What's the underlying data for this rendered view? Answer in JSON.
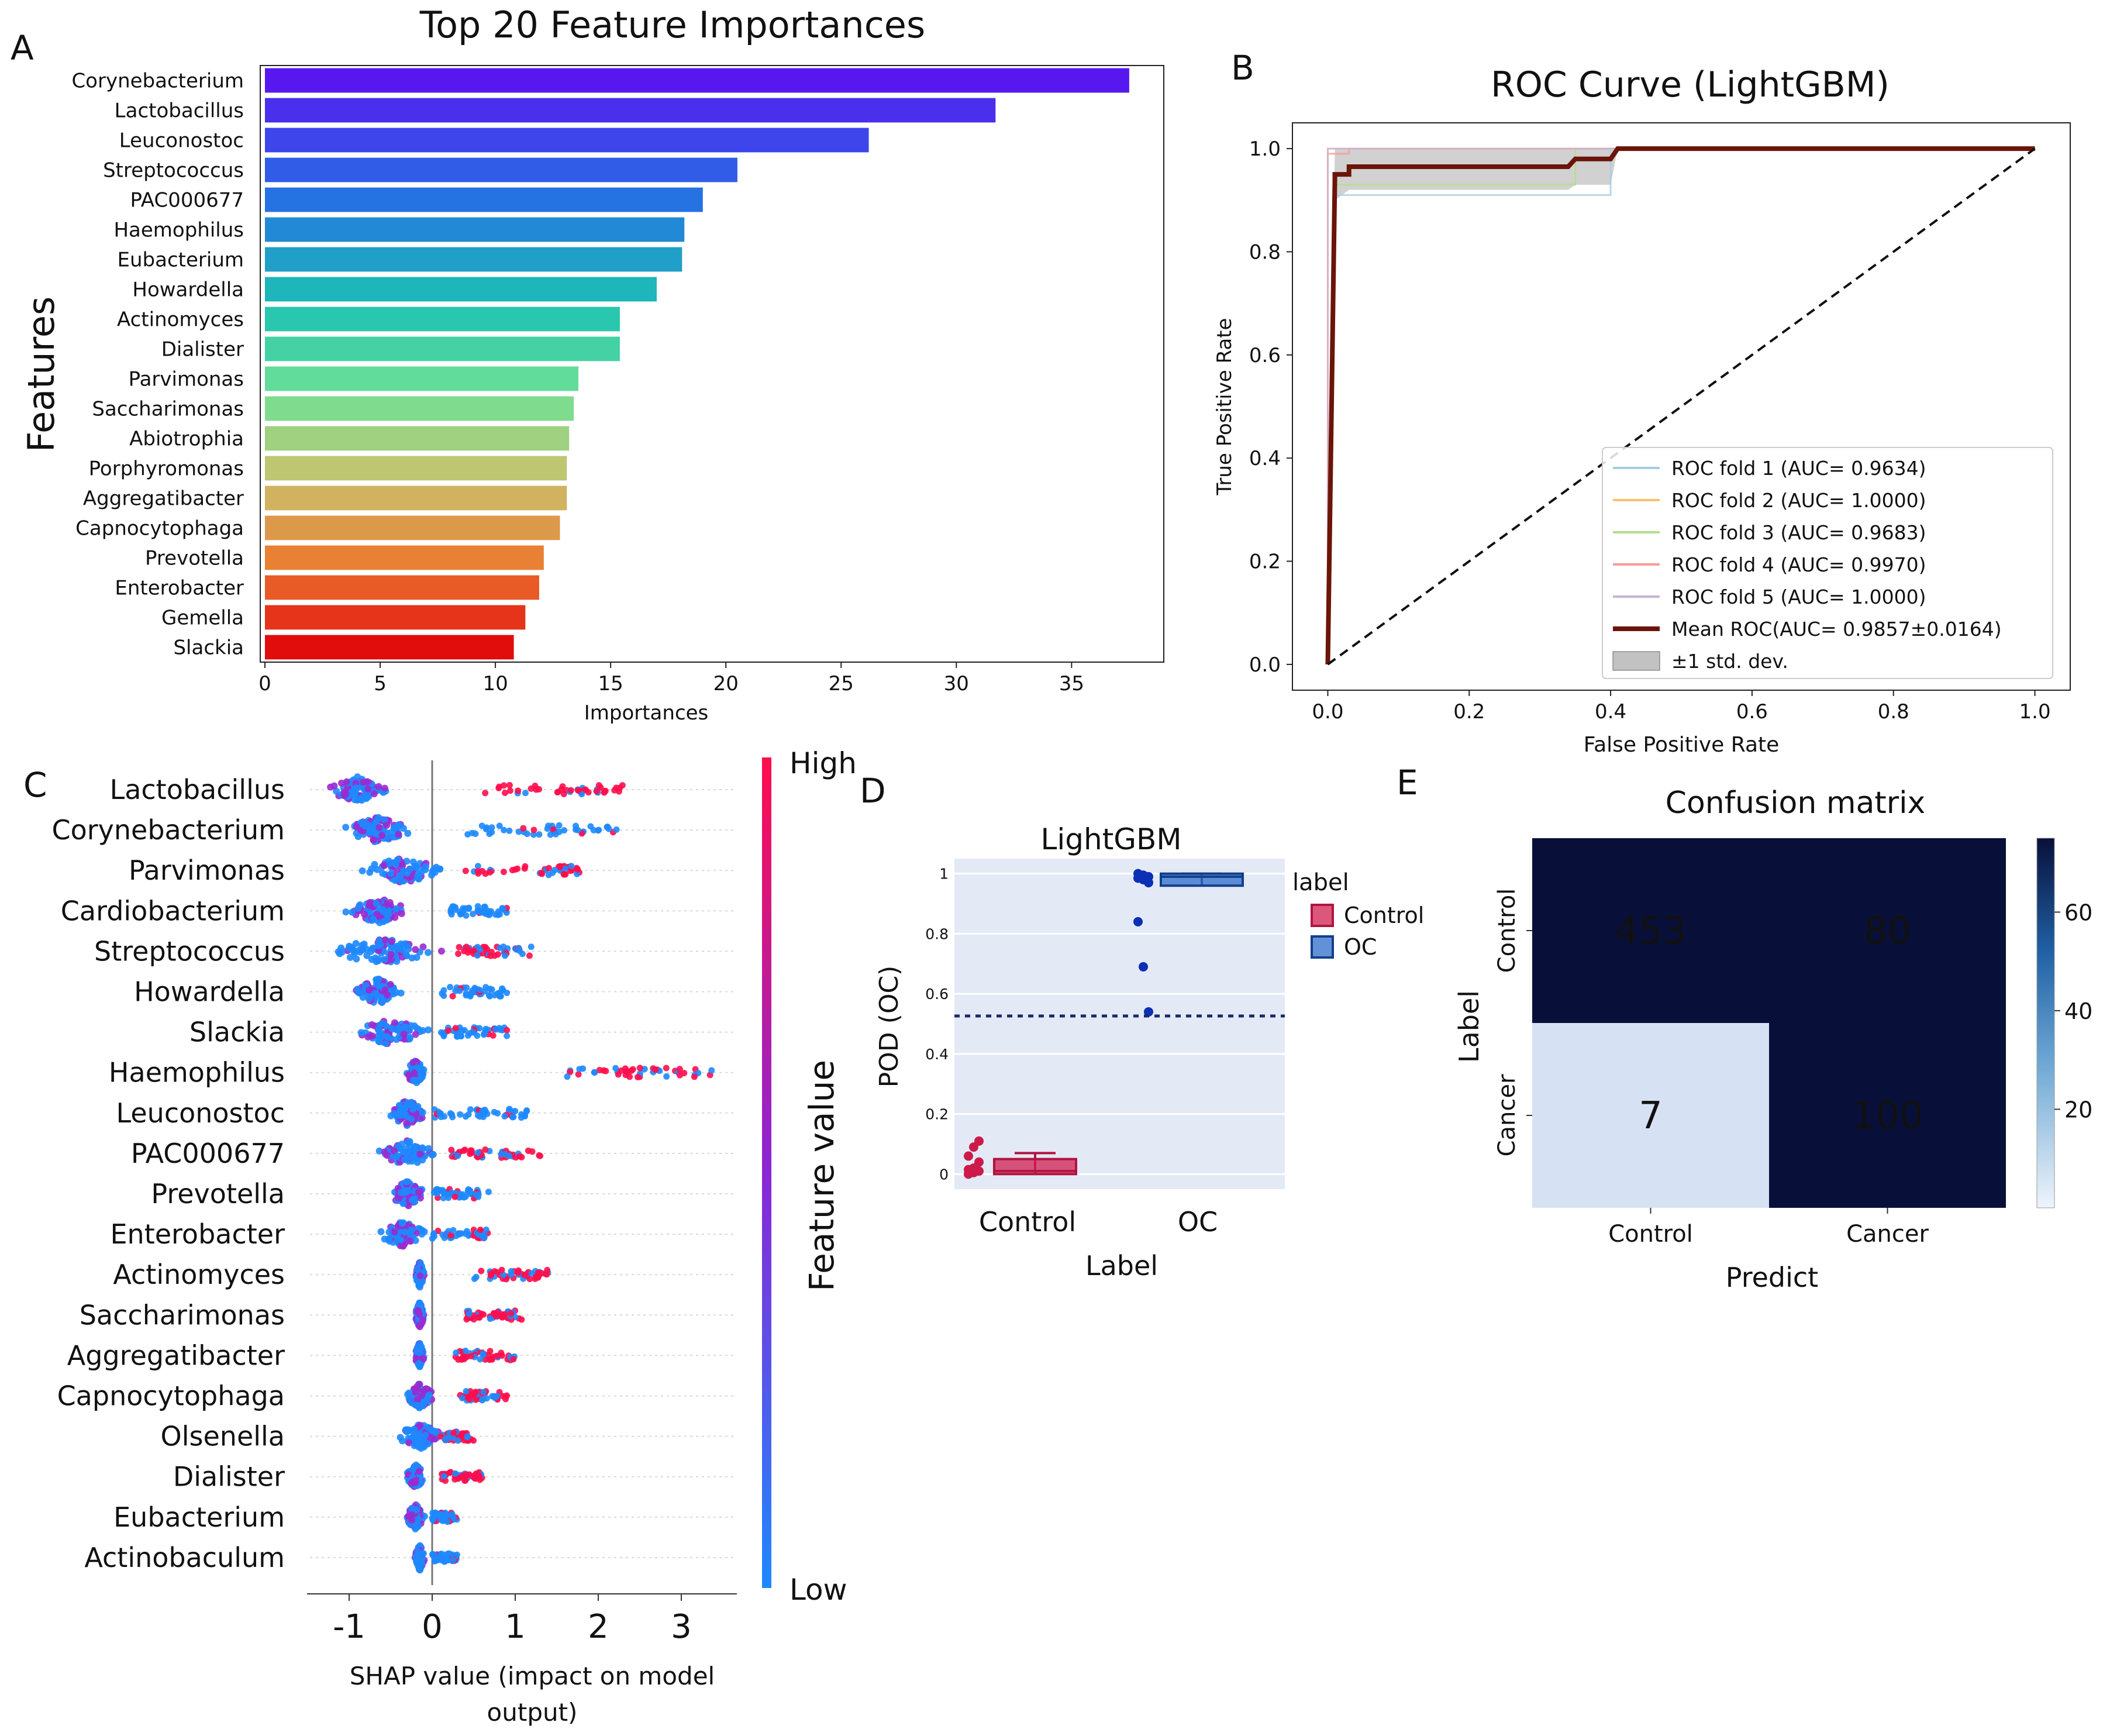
{
  "panel_labels": {
    "a": "A",
    "b": "B",
    "c": "C",
    "d": "D",
    "e": "E"
  },
  "colors": {
    "mean_roc": "#6b1408",
    "std_band": "#999999",
    "shap_high": "#ff0d4d",
    "shap_low": "#1e88ff",
    "cm_dark": "#08103a",
    "cm_light": "#e6eef8",
    "box_control": "#d11f52",
    "box_oc": "#2d6cc9",
    "panel_d_bg": "#e4e9f6"
  },
  "chart_data": [
    {
      "id": "importance",
      "type": "bar",
      "orientation": "horizontal",
      "title": "Top 20 Feature Importances",
      "xlabel": "Importances",
      "ylabel": "Features",
      "xlim": [
        0,
        39
      ],
      "xticks": [
        0,
        5,
        10,
        15,
        20,
        25,
        30,
        35
      ],
      "categories": [
        "Corynebacterium",
        "Lactobacillus",
        "Leuconostoc",
        "Streptococcus",
        "PAC000677",
        "Haemophilus",
        "Eubacterium",
        "Howardella",
        "Actinomyces",
        "Dialister",
        "Parvimonas",
        "Saccharimonas",
        "Abiotrophia",
        "Porphyromonas",
        "Aggregatibacter",
        "Capnocytophaga",
        "Prevotella",
        "Enterobacter",
        "Gemella",
        "Slackia"
      ],
      "values": [
        37.5,
        31.7,
        26.2,
        20.5,
        19.0,
        18.2,
        18.1,
        17.0,
        15.4,
        15.4,
        13.6,
        13.4,
        13.2,
        13.1,
        13.1,
        12.8,
        12.1,
        11.9,
        11.3,
        10.8
      ]
    },
    {
      "id": "roc",
      "type": "line",
      "title": "ROC Curve (LightGBM)",
      "xlabel": "False Positive Rate",
      "ylabel": "True Positive Rate",
      "xlim": [
        -0.05,
        1.05
      ],
      "ylim": [
        -0.05,
        1.05
      ],
      "ticks": [
        "0.0",
        "0.2",
        "0.4",
        "0.6",
        "0.8",
        "1.0"
      ],
      "series": [
        {
          "name": "ROC fold 1 (AUC= 0.9634)",
          "color": "#a6cee3",
          "x": [
            0,
            0.01,
            0.01,
            0.4,
            0.4,
            1
          ],
          "y": [
            0,
            0.9,
            0.91,
            0.91,
            1,
            1
          ]
        },
        {
          "name": "ROC fold 2 (AUC= 1.0000)",
          "color": "#fdbf6f",
          "x": [
            0,
            0,
            1
          ],
          "y": [
            0,
            1,
            1
          ]
        },
        {
          "name": "ROC fold 3 (AUC= 0.9683)",
          "color": "#b2df8a",
          "x": [
            0,
            0.01,
            0.01,
            0.35,
            0.35,
            1
          ],
          "y": [
            0,
            0.92,
            0.93,
            0.93,
            1,
            1
          ]
        },
        {
          "name": "ROC fold 4 (AUC= 0.9970)",
          "color": "#fb9a99",
          "x": [
            0,
            0,
            0.03,
            0.03,
            1
          ],
          "y": [
            0,
            0.99,
            0.99,
            1,
            1
          ]
        },
        {
          "name": "ROC fold 5 (AUC= 1.0000)",
          "color": "#cab2d6",
          "x": [
            0,
            0,
            1
          ],
          "y": [
            0,
            1,
            1
          ]
        }
      ],
      "mean": {
        "name": "Mean ROC(AUC= 0.9857±0.0164)",
        "x": [
          0,
          0.01,
          0.01,
          0.03,
          0.03,
          0.34,
          0.35,
          0.4,
          0.41,
          1
        ],
        "y": [
          0,
          0.94,
          0.95,
          0.95,
          0.965,
          0.965,
          0.98,
          0.98,
          1,
          1
        ]
      },
      "std_band": {
        "name": "±1 std. dev.",
        "x": [
          0,
          0.01,
          0.03,
          0.34,
          0.35,
          0.4,
          0.41,
          1
        ],
        "upper": [
          0.02,
          1,
          1,
          1,
          1,
          1,
          1,
          1
        ],
        "lower": [
          0,
          0.9,
          0.92,
          0.92,
          0.93,
          0.93,
          1,
          1
        ]
      },
      "diagonal": {
        "x": [
          0,
          1
        ],
        "y": [
          0,
          1
        ]
      }
    },
    {
      "id": "shap",
      "type": "scatter",
      "subtype": "beeswarm",
      "xlabel_line1": "SHAP value (impact on model",
      "xlabel_line2": "output)",
      "xlim": [
        -1.5,
        3.5
      ],
      "xticks": [
        "-1",
        "0",
        "1",
        "2",
        "3"
      ],
      "colorbar": {
        "label": "Feature value",
        "high": "High",
        "low": "Low"
      },
      "features": [
        {
          "name": "Lactobacillus",
          "core": [
            -1.2,
            -0.6
          ],
          "tail": [
            0.6,
            2.3
          ],
          "tail_high": true
        },
        {
          "name": "Corynebacterium",
          "core": [
            -1.0,
            -0.3
          ],
          "tail": [
            0.4,
            2.4
          ],
          "tail_high": false
        },
        {
          "name": "Parvimonas",
          "core": [
            -0.8,
            0.1
          ],
          "tail": [
            0.4,
            1.8
          ],
          "tail_high": true
        },
        {
          "name": "Cardiobacterium",
          "core": [
            -1.0,
            -0.3
          ],
          "tail": [
            0.2,
            0.9
          ],
          "tail_high": false
        },
        {
          "name": "Streptococcus",
          "core": [
            -1.2,
            0.0
          ],
          "tail": [
            0.3,
            1.2
          ],
          "tail_high": true
        },
        {
          "name": "Howardella",
          "core": [
            -0.9,
            -0.4
          ],
          "tail": [
            0.1,
            0.9
          ],
          "tail_high": false
        },
        {
          "name": "Slackia",
          "core": [
            -0.9,
            -0.1
          ],
          "tail": [
            0.1,
            0.9
          ],
          "tail_high": false
        },
        {
          "name": "Haemophilus",
          "core": [
            -0.3,
            -0.1
          ],
          "tail": [
            1.6,
            3.4
          ],
          "tail_high": true
        },
        {
          "name": "Leuconostoc",
          "core": [
            -0.5,
            -0.1
          ],
          "tail": [
            0.0,
            1.2
          ],
          "tail_high": false
        },
        {
          "name": "PAC000677",
          "core": [
            -0.6,
            0.0
          ],
          "tail": [
            0.2,
            1.3
          ],
          "tail_high": true
        },
        {
          "name": "Prevotella",
          "core": [
            -0.5,
            -0.1
          ],
          "tail": [
            0.0,
            0.7
          ],
          "tail_high": false
        },
        {
          "name": "Enterobacter",
          "core": [
            -0.6,
            -0.1
          ],
          "tail": [
            0.0,
            0.7
          ],
          "tail_high": false
        },
        {
          "name": "Actinomyces",
          "core": [
            -0.2,
            -0.1
          ],
          "tail": [
            0.5,
            1.4
          ],
          "tail_high": true
        },
        {
          "name": "Saccharimonas",
          "core": [
            -0.2,
            -0.1
          ],
          "tail": [
            0.4,
            1.1
          ],
          "tail_high": true
        },
        {
          "name": "Aggregatibacter",
          "core": [
            -0.2,
            -0.1
          ],
          "tail": [
            0.2,
            1.0
          ],
          "tail_high": true
        },
        {
          "name": "Capnocytophaga",
          "core": [
            -0.3,
            0.0
          ],
          "tail": [
            0.3,
            0.9
          ],
          "tail_high": true
        },
        {
          "name": "Olsenella",
          "core": [
            -0.4,
            0.1
          ],
          "tail": [
            0.1,
            0.5
          ],
          "tail_high": true
        },
        {
          "name": "Dialister",
          "core": [
            -0.3,
            -0.1
          ],
          "tail": [
            0.1,
            0.6
          ],
          "tail_high": true
        },
        {
          "name": "Eubacterium",
          "core": [
            -0.3,
            -0.1
          ],
          "tail": [
            0.0,
            0.3
          ],
          "tail_high": false
        },
        {
          "name": "Actinobaculum",
          "core": [
            -0.2,
            -0.1
          ],
          "tail": [
            0.0,
            0.3
          ],
          "tail_high": false
        }
      ]
    },
    {
      "id": "pod",
      "type": "box",
      "title": "LightGBM",
      "xlabel": "Label",
      "ylabel": "POD (OC)",
      "ylim": [
        -0.05,
        1.05
      ],
      "yticks": [
        "0",
        "0.2",
        "0.4",
        "0.6",
        "0.8",
        "1"
      ],
      "categories": [
        "Control",
        "OC"
      ],
      "threshold": 0.53,
      "legend_title": "label",
      "boxes": [
        {
          "name": "Control",
          "q1": 0.0,
          "median": 0.01,
          "q3": 0.05,
          "whisker_low": 0.0,
          "whisker_high": 0.07,
          "points": [
            0.0,
            0.005,
            0.01,
            0.015,
            0.02,
            0.04,
            0.06,
            0.09,
            0.11
          ]
        },
        {
          "name": "OC",
          "q1": 0.96,
          "median": 0.99,
          "q3": 1.0,
          "whisker_low": 0.96,
          "whisker_high": 1.0,
          "points": [
            1.0,
            0.995,
            0.99,
            0.985,
            0.98,
            0.97,
            0.84,
            0.69,
            0.54
          ]
        }
      ]
    },
    {
      "id": "confusion",
      "type": "heatmap",
      "title": "Confusion matrix",
      "xlabel": "Predict",
      "ylabel": "Label",
      "x_categories": [
        "Control",
        "Cancer"
      ],
      "y_categories": [
        "Control",
        "Cancer"
      ],
      "matrix": [
        [
          453,
          80
        ],
        [
          7,
          100
        ]
      ],
      "color_scale": [
        0,
        75
      ],
      "colorbar_ticks": [
        "20",
        "40",
        "60"
      ]
    }
  ]
}
